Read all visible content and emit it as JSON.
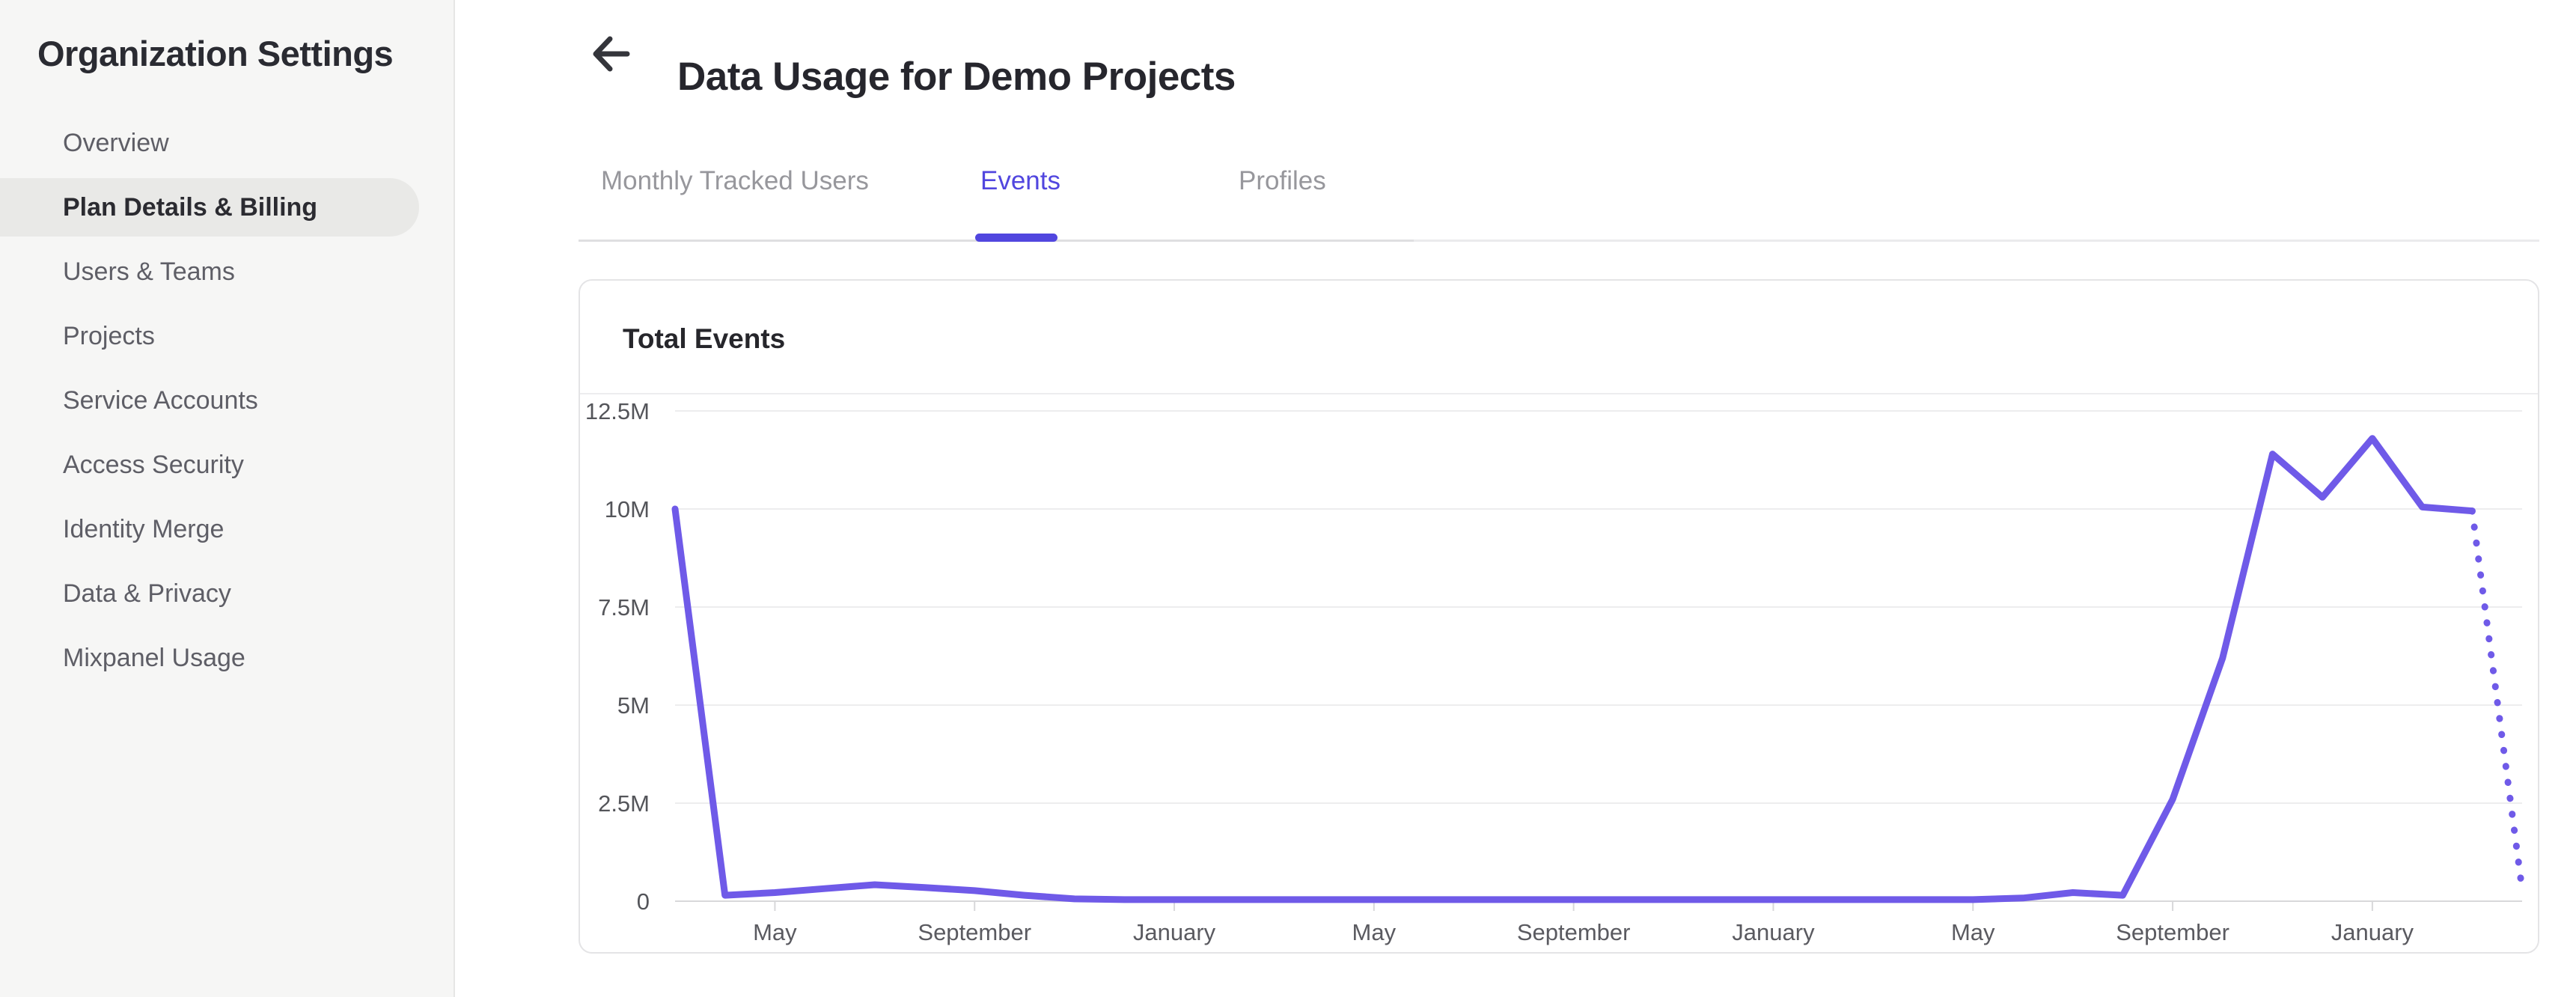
{
  "sidebar": {
    "title": "Organization Settings",
    "items": [
      {
        "label": "Overview",
        "active": false
      },
      {
        "label": "Plan Details & Billing",
        "active": true
      },
      {
        "label": "Users & Teams",
        "active": false
      },
      {
        "label": "Projects",
        "active": false
      },
      {
        "label": "Service Accounts",
        "active": false
      },
      {
        "label": "Access Security",
        "active": false
      },
      {
        "label": "Identity Merge",
        "active": false
      },
      {
        "label": "Data & Privacy",
        "active": false
      },
      {
        "label": "Mixpanel Usage",
        "active": false
      }
    ]
  },
  "header": {
    "title": "Data Usage for Demo Projects",
    "back_icon": "left-arrow-icon"
  },
  "tabs": {
    "items": [
      {
        "label": "Monthly Tracked Users",
        "active": false
      },
      {
        "label": "Events",
        "active": true
      },
      {
        "label": "Profiles",
        "active": false
      }
    ]
  },
  "card": {
    "title": "Total Events"
  },
  "colors": {
    "accent": "#5146df",
    "chart_line": "#6f5ae8",
    "gridline": "#ededee",
    "axis_line": "#d8d8da",
    "axis_label": "#54555a"
  },
  "chart_data": {
    "type": "line",
    "title": "Total Events",
    "unit": "millions of events",
    "ylim": [
      0,
      12500000
    ],
    "grid": "horizontal",
    "legend": "none",
    "y_ticks": [
      {
        "label": "12.5M",
        "value": 12.5
      },
      {
        "label": "10M",
        "value": 10
      },
      {
        "label": "7.5M",
        "value": 7.5
      },
      {
        "label": "5M",
        "value": 5
      },
      {
        "label": "2.5M",
        "value": 2.5
      },
      {
        "label": "0",
        "value": 0
      }
    ],
    "x_tick_labels": [
      "May",
      "September",
      "January",
      "May",
      "September",
      "January",
      "May",
      "September",
      "January"
    ],
    "x_tick_positions": [
      2,
      6,
      10,
      14,
      18,
      22,
      26,
      30,
      34
    ],
    "series": [
      {
        "name": "Total Events",
        "values_millions": [
          10,
          0.15,
          0.22,
          0.32,
          0.42,
          0.35,
          0.27,
          0.15,
          0.06,
          0.04,
          0.04,
          0.04,
          0.04,
          0.04,
          0.04,
          0.04,
          0.04,
          0.04,
          0.04,
          0.04,
          0.04,
          0.04,
          0.04,
          0.04,
          0.04,
          0.04,
          0.04,
          0.08,
          0.22,
          0.15,
          2.6,
          6.2,
          11.4,
          10.3,
          11.8,
          10.05,
          9.95,
          0.3
        ],
        "dotted_final_segment": true
      }
    ]
  }
}
